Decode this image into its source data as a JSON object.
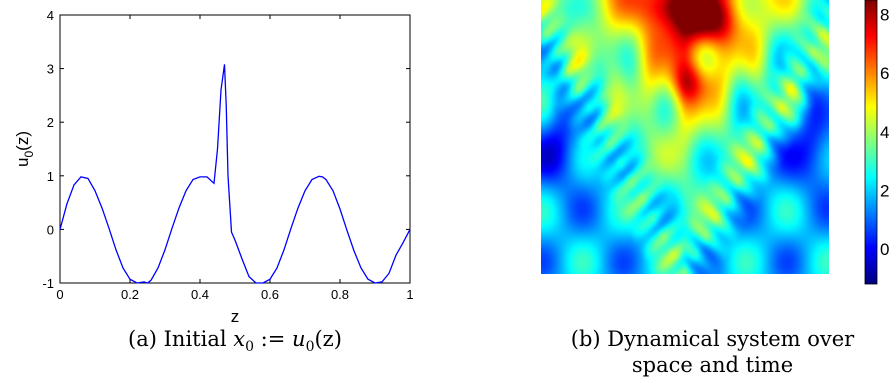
{
  "chart_data": [
    {
      "type": "line",
      "panel": "(a)",
      "xlabel": "z",
      "ylabel": "u0(z)",
      "ylabel_main": "u",
      "ylabel_sub": "0",
      "ylabel_tail": "(z)",
      "xlim": [
        0,
        1
      ],
      "ylim": [
        -1,
        4
      ],
      "xticks": [
        0,
        0.2,
        0.4,
        0.6,
        0.8,
        1
      ],
      "xtick_labels": [
        "0",
        "0.2",
        "0.4",
        "0.6",
        "0.8",
        "1"
      ],
      "yticks": [
        -1,
        0,
        1,
        2,
        3,
        4
      ],
      "ytick_labels": [
        "-1",
        "0",
        "1",
        "2",
        "3",
        "4"
      ],
      "series_color": "#0000ff",
      "x": [
        0,
        0.02,
        0.04,
        0.06,
        0.08,
        0.1,
        0.12,
        0.14,
        0.16,
        0.18,
        0.2,
        0.22,
        0.24,
        0.25,
        0.26,
        0.28,
        0.3,
        0.32,
        0.34,
        0.36,
        0.38,
        0.4,
        0.42,
        0.44,
        0.45,
        0.46,
        0.47,
        0.475,
        0.48,
        0.49,
        0.5,
        0.52,
        0.54,
        0.56,
        0.58,
        0.6,
        0.62,
        0.64,
        0.66,
        0.68,
        0.7,
        0.72,
        0.74,
        0.75,
        0.76,
        0.78,
        0.8,
        0.82,
        0.84,
        0.86,
        0.88,
        0.9,
        0.92,
        0.94,
        0.96,
        0.98,
        1.0
      ],
      "y": [
        0,
        0.48,
        0.83,
        0.98,
        0.95,
        0.72,
        0.4,
        0.02,
        -0.38,
        -0.72,
        -0.93,
        -1.0,
        -0.98,
        -1.0,
        -0.95,
        -0.72,
        -0.38,
        0.02,
        0.4,
        0.72,
        0.93,
        0.98,
        0.98,
        0.86,
        1.5,
        2.6,
        3.08,
        2.3,
        1.0,
        -0.05,
        -0.2,
        -0.55,
        -0.88,
        -1.0,
        -1.0,
        -0.93,
        -0.72,
        -0.38,
        0.02,
        0.4,
        0.72,
        0.93,
        0.99,
        0.98,
        0.93,
        0.72,
        0.38,
        -0.02,
        -0.4,
        -0.72,
        -0.93,
        -1.0,
        -0.98,
        -0.82,
        -0.48,
        -0.25,
        0.0
      ]
    },
    {
      "type": "heatmap",
      "panel": "(b)",
      "colorscale": "jet",
      "colorbar_ticks": [
        0,
        2,
        4,
        6,
        8
      ],
      "colorbar_tick_labels": [
        "0",
        "2",
        "4",
        "6",
        "8"
      ],
      "clim": [
        -1.2,
        8.5
      ]
    }
  ],
  "captions": {
    "a_prefix": "(a) Initial ",
    "a_x": "x",
    "a_sub": "0",
    "a_rest": " := ",
    "a_u": "u",
    "a_usub": "0",
    "a_tail": "(z)",
    "b_line1": "(b) Dynamical system over",
    "b_line2": "space and time"
  }
}
